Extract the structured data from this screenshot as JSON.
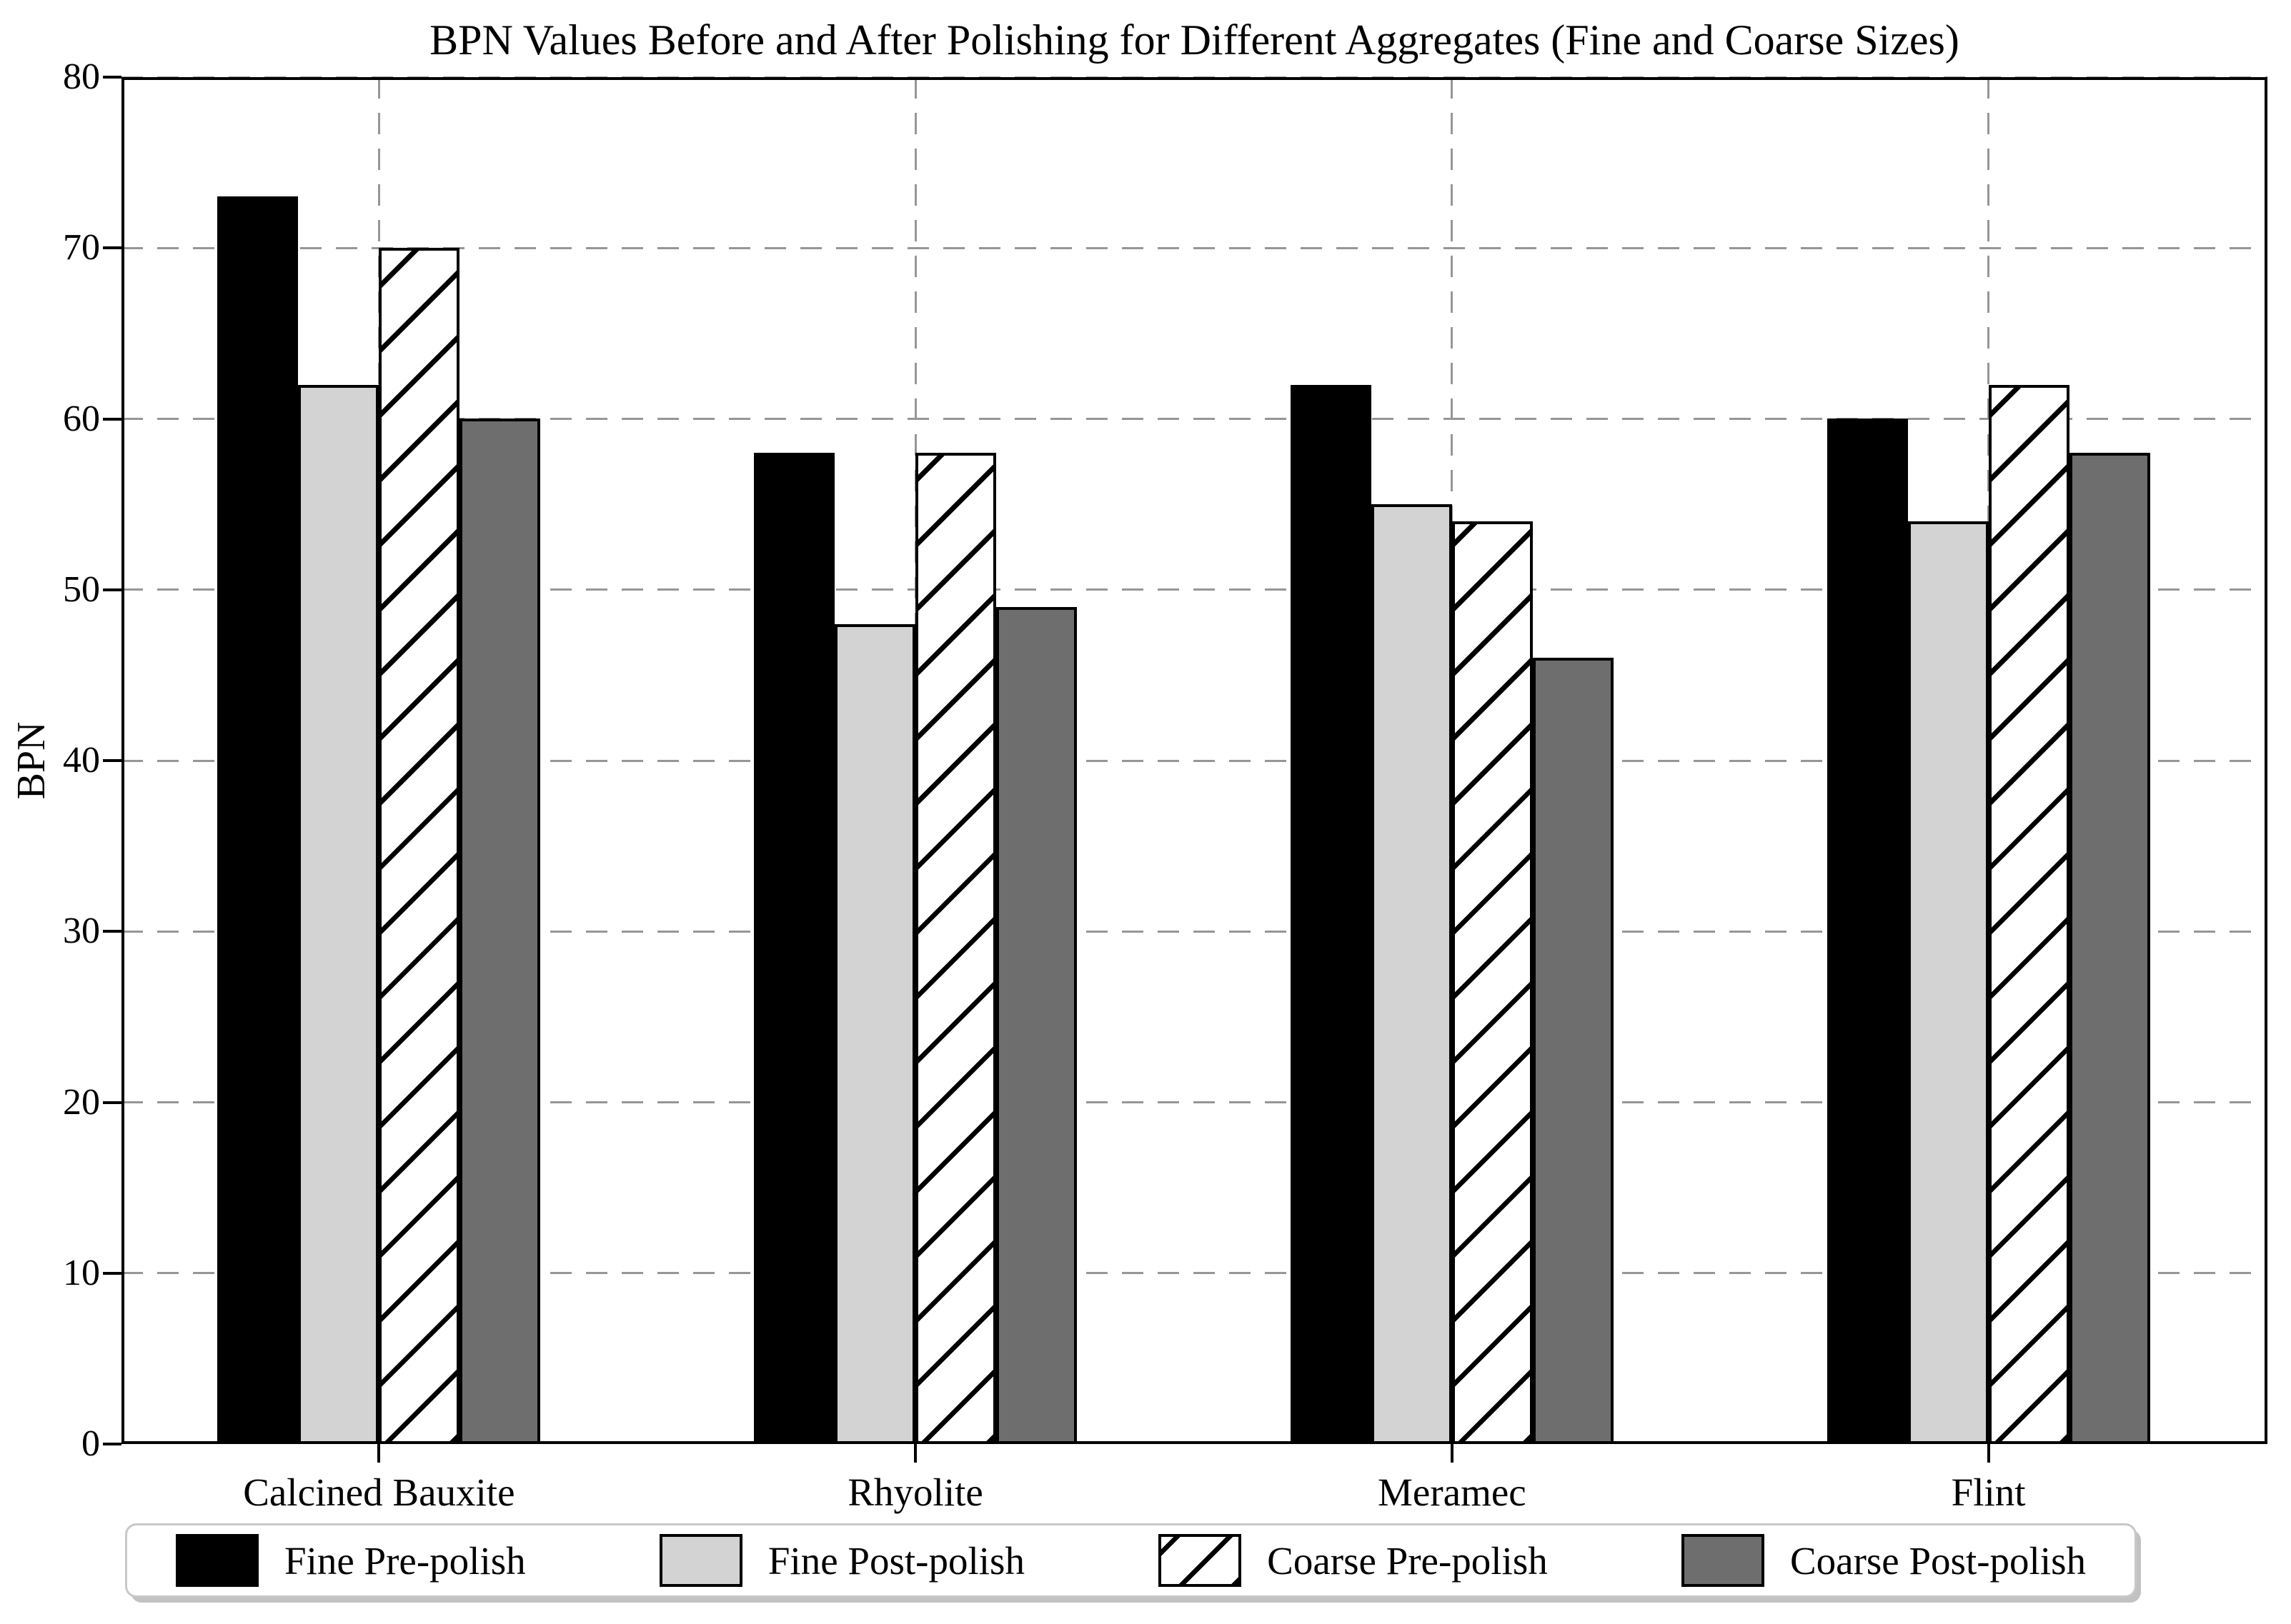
{
  "chart_data": {
    "type": "bar",
    "title": "BPN Values Before and After Polishing for Different Aggregates (Fine and Coarse Sizes)",
    "xlabel": "",
    "ylabel": "BPN",
    "ylim": [
      0,
      80
    ],
    "yticks": [
      0,
      10,
      20,
      30,
      40,
      50,
      60,
      70,
      80
    ],
    "categories": [
      "Calcined Bauxite",
      "Rhyolite",
      "Meramec",
      "Flint"
    ],
    "series": [
      {
        "name": "Fine Pre-polish",
        "color": "#000000",
        "hatch": "none",
        "values": [
          73,
          58,
          62,
          60
        ]
      },
      {
        "name": "Fine Post-polish",
        "color": "#d3d3d3",
        "hatch": "none",
        "values": [
          62,
          48,
          55,
          54
        ]
      },
      {
        "name": "Coarse Pre-polish",
        "color": "#ffffff",
        "hatch": "diagonal",
        "values": [
          70,
          58,
          54,
          62
        ]
      },
      {
        "name": "Coarse Post-polish",
        "color": "#6e6e6e",
        "hatch": "none",
        "values": [
          60,
          49,
          46,
          58
        ]
      }
    ],
    "bar_edge_color": "#000000",
    "grid": {
      "horizontal": true,
      "vertical": true,
      "style": "dashed",
      "color": "#969696"
    },
    "legend_position": "lower center",
    "background": "#ffffff"
  }
}
